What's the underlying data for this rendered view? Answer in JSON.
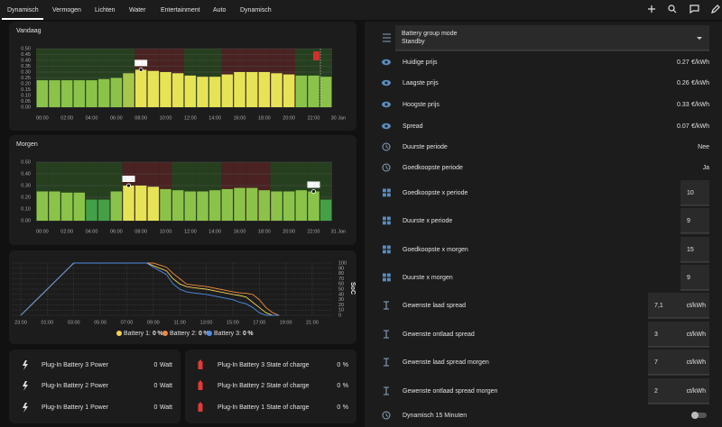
{
  "tabs": [
    "Dynamisch",
    "Vermogen",
    "Lichten",
    "Water",
    "Entertainment",
    "Auto",
    "Dynamisch"
  ],
  "chart_data": [
    {
      "type": "bar",
      "title": "Vandaag",
      "categories": [
        "00:00",
        null,
        "02:00",
        null,
        "04:00",
        null,
        "06:00",
        null,
        "08:00",
        null,
        "10:00",
        null,
        "12:00",
        null,
        "14:00",
        null,
        "16:00",
        null,
        "18:00",
        null,
        "20:00",
        null,
        "22:00",
        null
      ],
      "end_label": "30 Jan",
      "values": [
        0.23,
        0.23,
        0.23,
        0.23,
        0.23,
        0.24,
        0.25,
        0.29,
        0.32,
        0.31,
        0.3,
        0.29,
        0.27,
        0.26,
        0.26,
        0.28,
        0.3,
        0.3,
        0.3,
        0.29,
        0.28,
        0.27,
        0.27,
        0.26
      ],
      "value_labels": [
        null,
        null,
        null,
        null,
        null,
        null,
        null,
        null,
        "0.32",
        null,
        null,
        null,
        null,
        null,
        null,
        null,
        null,
        null,
        null,
        null,
        null,
        null,
        null,
        null
      ],
      "colors": [
        "#8bc34a",
        "#8bc34a",
        "#8bc34a",
        "#8bc34a",
        "#8bc34a",
        "#8bc34a",
        "#8bc34a",
        "#a5c84a",
        "#e6e356",
        "#e6e356",
        "#e6e356",
        "#e6e356",
        "#e6e356",
        "#e6e356",
        "#e6e356",
        "#e6e356",
        "#e6e356",
        "#e6e356",
        "#e6e356",
        "#e6e356",
        "#e6e356",
        "#8bc34a",
        "#8bc34a",
        "#8bc34a"
      ],
      "background_colors": [
        "#26401f",
        "#26401f",
        "#26401f",
        "#26401f",
        "#26401f",
        "#26401f",
        "#26401f",
        "#26401f",
        "#4a2222",
        "#4a2222",
        "#4a2222",
        "#4a2222",
        "#26401f",
        "#26401f",
        "#26401f",
        "#4a2222",
        "#4a2222",
        "#4a2222",
        "#4a2222",
        "#4a2222",
        "#4a2222",
        "#26401f",
        "#26401f",
        "#26401f"
      ],
      "ylim": [
        0,
        0.5
      ],
      "yticks": [
        {
          "value": 0,
          "label": "0.00"
        },
        0.05,
        {
          "value": 0.1,
          "label": "0.10"
        },
        0.15,
        {
          "value": 0.2,
          "label": "0.20"
        },
        0.25,
        {
          "value": 0.3,
          "label": "0.30"
        },
        0.35,
        {
          "value": 0.4,
          "label": "0.40"
        },
        0.45,
        {
          "value": 0.5,
          "label": "0.50"
        }
      ],
      "grid": true
    },
    {
      "type": "bar",
      "title": "Morgen",
      "categories": [
        "00:00",
        null,
        "02:00",
        null,
        "04:00",
        null,
        "06:00",
        null,
        "08:00",
        null,
        "10:00",
        null,
        "12:00",
        null,
        "14:00",
        null,
        "16:00",
        null,
        "18:00",
        null,
        "20:00",
        null,
        "22:00",
        null
      ],
      "end_label": "31 Jan",
      "values": [
        0.25,
        0.25,
        0.24,
        0.24,
        0.18,
        0.18,
        0.25,
        0.3,
        0.3,
        0.29,
        0.27,
        0.26,
        0.25,
        0.25,
        0.26,
        0.27,
        0.28,
        0.28,
        0.26,
        0.25,
        0.25,
        0.26,
        0.25,
        0.18
      ],
      "value_labels": [
        null,
        null,
        null,
        null,
        null,
        null,
        null,
        "0.3",
        null,
        null,
        null,
        null,
        null,
        null,
        null,
        null,
        null,
        null,
        null,
        null,
        null,
        null,
        "0.25",
        null
      ],
      "colors": [
        "#8bc34a",
        "#8bc34a",
        "#8bc34a",
        "#8bc34a",
        "#43a047",
        "#43a047",
        "#8bc34a",
        "#e6e356",
        "#e6e356",
        "#e6e356",
        "#8bc34a",
        "#8bc34a",
        "#8bc34a",
        "#8bc34a",
        "#8bc34a",
        "#8bc34a",
        "#8bc34a",
        "#8bc34a",
        "#8bc34a",
        "#8bc34a",
        "#8bc34a",
        "#8bc34a",
        "#8bc34a",
        "#43a047"
      ],
      "background_colors": [
        "#26401f",
        "#26401f",
        "#26401f",
        "#26401f",
        "#26401f",
        "#26401f",
        "#26401f",
        "#4a2222",
        "#4a2222",
        "#4a2222",
        "#4a2222",
        "#26401f",
        "#26401f",
        "#26401f",
        "#26401f",
        "#4a2222",
        "#4a2222",
        "#4a2222",
        "#4a2222",
        "#26401f",
        "#26401f",
        "#26401f",
        "#26401f",
        "#26401f"
      ],
      "ylim": [
        0,
        0.5
      ],
      "yticks": [
        {
          "value": 0,
          "label": "0.00"
        },
        {
          "value": 0.1,
          "label": "0.10"
        },
        {
          "value": 0.2,
          "label": "0.20"
        },
        {
          "value": 0.3,
          "label": "0.30"
        },
        {
          "value": 0.4,
          "label": "0.40"
        },
        {
          "value": 0.5,
          "label": "0.50"
        }
      ],
      "grid": true
    },
    {
      "type": "line",
      "y_label": "SoC",
      "x": [
        "23:00",
        "00:00",
        "01:00",
        "02:00",
        "03:00",
        "04:00",
        "05:00",
        "06:00",
        "07:00",
        "08:00",
        "08:30",
        "09:00",
        "09:30",
        "10:00",
        "10:30",
        "11:00",
        "11:30",
        "12:00",
        "13:00",
        "14:00",
        "15:00",
        "15:30",
        "16:00",
        "16:30",
        "17:00",
        "17:30",
        "18:00",
        "18:30"
      ],
      "xticks": [
        "23:00",
        "01:00",
        "03:00",
        "05:00",
        "07:00",
        "09:00",
        "11:00",
        "13:00",
        "15:00",
        "17:00",
        "19:00",
        "21:00"
      ],
      "ylim": [
        0,
        100
      ],
      "yticks": [
        0,
        10,
        20,
        30,
        40,
        50,
        60,
        70,
        80,
        90,
        100
      ],
      "grid": true,
      "series": [
        {
          "name": "Battery 1:",
          "color": "#f2d34f",
          "current": 0,
          "unit": "%",
          "values": [
            0,
            25,
            50,
            75,
            100,
            100,
            100,
            100,
            100,
            100,
            100,
            95,
            90,
            85,
            70,
            60,
            55,
            53,
            50,
            45,
            40,
            38,
            35,
            25,
            15,
            5,
            0,
            0
          ]
        },
        {
          "name": "Battery 2:",
          "color": "#f08a3c",
          "current": 0,
          "unit": "%",
          "values": [
            0,
            25,
            50,
            75,
            100,
            100,
            100,
            100,
            100,
            100,
            100,
            100,
            96,
            92,
            80,
            70,
            60,
            58,
            55,
            50,
            45,
            43,
            42,
            40,
            30,
            15,
            5,
            0
          ]
        },
        {
          "name": "Battery 3:",
          "color": "#4f8fe6",
          "current": 0,
          "unit": "%",
          "values": [
            0,
            25,
            50,
            75,
            100,
            100,
            100,
            100,
            100,
            100,
            100,
            92,
            85,
            78,
            60,
            50,
            45,
            43,
            40,
            35,
            30,
            25,
            22,
            15,
            5,
            0,
            0,
            0
          ]
        }
      ]
    }
  ],
  "power_card": {
    "rows": [
      {
        "name": "Plug-In Battery 3 Power",
        "value": 0,
        "unit": "Watt"
      },
      {
        "name": "Plug-In Battery 2 Power",
        "value": 0,
        "unit": "Watt"
      },
      {
        "name": "Plug-In Battery 1 Power",
        "value": 0,
        "unit": "Watt"
      }
    ]
  },
  "soc_card": {
    "rows": [
      {
        "name": "Plug-In Battery 3 State of charge",
        "value": 0,
        "unit": "%"
      },
      {
        "name": "Plug-In Battery 2 State of charge",
        "value": 0,
        "unit": "%"
      },
      {
        "name": "Plug-In Battery 1 State of charge",
        "value": 0,
        "unit": "%"
      }
    ]
  },
  "entities": {
    "select": {
      "label": "Battery group mode",
      "value": "Standby"
    },
    "sensors": [
      {
        "name": "Huidige prijs",
        "value": 0.27,
        "unit": "€/kWh"
      },
      {
        "name": "Laagste prijs",
        "value": 0.26,
        "unit": "€/kWh"
      },
      {
        "name": "Hoogste prijs",
        "value": 0.33,
        "unit": "€/kWh"
      },
      {
        "name": "Spread",
        "value": 0.07,
        "unit": "€/kWh"
      }
    ],
    "binary": [
      {
        "name": "Duurste periode",
        "state": "Nee"
      },
      {
        "name": "Goedkoopste periode",
        "state": "Ja"
      }
    ],
    "numbers": [
      {
        "name": "Goedkoopste x periode",
        "value": 10
      },
      {
        "name": "Duurste x periode",
        "value": 9
      },
      {
        "name": "Goedkoopste x morgen",
        "value": 15
      },
      {
        "name": "Duurste x morgen",
        "value": 9
      }
    ],
    "spreads": [
      {
        "name": "Gewenste laad spread",
        "value": 7.1,
        "value_label": "7,1",
        "unit": "ct/kWh"
      },
      {
        "name": "Gewenste ontlaad spread",
        "value": 3,
        "unit": "ct/kWh"
      },
      {
        "name": "Gewenste laad spread morgen",
        "value": 7,
        "unit": "ct/kWh"
      },
      {
        "name": "Gewenste ontlaad spread morgen",
        "value": 2,
        "unit": "ct/kWh"
      }
    ],
    "switch": {
      "name": "Dynamisch 15 Minuten",
      "on": false
    }
  }
}
